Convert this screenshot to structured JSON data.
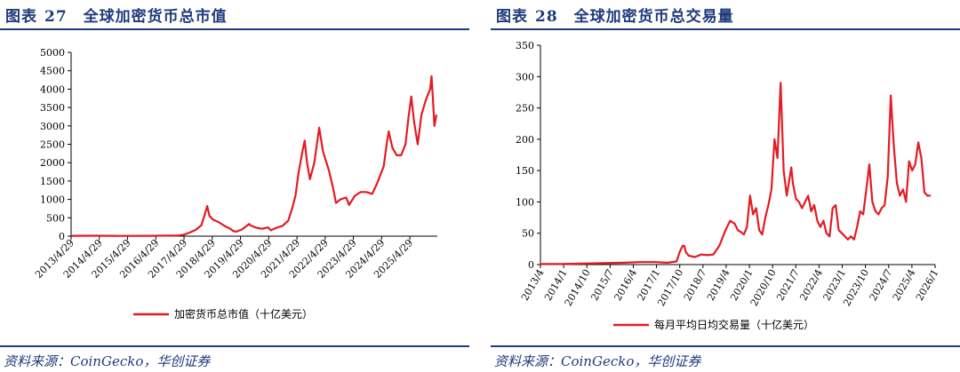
{
  "colors": {
    "series": "#e31b23",
    "heading": "#1f3b7a",
    "axis": "#000000"
  },
  "panels": [
    {
      "title_label": "图表",
      "title_num": "27",
      "title_text": "全球加密货币总市值",
      "source": "资料来源：CoinGecko，华创证券"
    },
    {
      "title_label": "图表",
      "title_num": "28",
      "title_text": "全球加密货币总交易量",
      "source": "资料来源：CoinGecko，华创证券"
    }
  ],
  "chart_data": [
    {
      "type": "line",
      "title": "",
      "xlabel": "",
      "ylabel": "",
      "ylim": [
        0,
        5000
      ],
      "yticks": [
        "0",
        "500",
        "1000",
        "1500",
        "2000",
        "2500",
        "3000",
        "3500",
        "4000",
        "4500",
        "5000"
      ],
      "xticks": [
        "2013/4/29",
        "2014/4/29",
        "2015/4/29",
        "2016/4/29",
        "2017/4/29",
        "2018/4/29",
        "2019/4/29",
        "2020/4/29",
        "2021/4/29",
        "2022/4/29",
        "2023/4/29",
        "2024/4/29",
        "2025/4/29"
      ],
      "x_range": [
        2013.3,
        2025.95
      ],
      "legend_position": "bottom",
      "grid": false,
      "series": [
        {
          "name": "加密货币总市值（十亿美元）",
          "x": [
            2013.33,
            2014.0,
            2015.0,
            2016.0,
            2017.0,
            2017.2,
            2017.4,
            2017.6,
            2017.8,
            2017.92,
            2018.0,
            2018.08,
            2018.2,
            2018.4,
            2018.6,
            2018.8,
            2018.9,
            2019.0,
            2019.2,
            2019.45,
            2019.5,
            2019.7,
            2019.9,
            2020.1,
            2020.2,
            2020.4,
            2020.6,
            2020.8,
            2020.95,
            2021.05,
            2021.15,
            2021.3,
            2021.37,
            2021.45,
            2021.55,
            2021.7,
            2021.87,
            2022.0,
            2022.2,
            2022.35,
            2022.45,
            2022.6,
            2022.8,
            2022.9,
            2023.1,
            2023.3,
            2023.5,
            2023.7,
            2023.85,
            2024.0,
            2024.1,
            2024.2,
            2024.27,
            2024.4,
            2024.55,
            2024.7,
            2024.85,
            2024.95,
            2025.05,
            2025.15,
            2025.27,
            2025.4,
            2025.55,
            2025.7,
            2025.75,
            2025.8,
            2025.85,
            2025.92
          ],
          "values": [
            10,
            12,
            8,
            9,
            20,
            40,
            100,
            170,
            300,
            600,
            820,
            550,
            450,
            380,
            280,
            200,
            140,
            120,
            180,
            330,
            290,
            230,
            200,
            240,
            160,
            230,
            280,
            420,
            800,
            1100,
            1700,
            2350,
            2600,
            2000,
            1550,
            2000,
            2950,
            2300,
            1800,
            1300,
            900,
            1000,
            1050,
            850,
            1100,
            1200,
            1200,
            1150,
            1400,
            1700,
            1900,
            2500,
            2850,
            2400,
            2200,
            2200,
            2500,
            3200,
            3800,
            3100,
            2500,
            3300,
            3700,
            4000,
            4350,
            3700,
            3000,
            3300
          ]
        }
      ]
    },
    {
      "type": "line",
      "title": "",
      "xlabel": "",
      "ylabel": "",
      "ylim": [
        0,
        350
      ],
      "yticks": [
        "0",
        "50",
        "100",
        "150",
        "200",
        "250",
        "300",
        "350"
      ],
      "xticks": [
        "2013/4",
        "2014/1",
        "2014/10",
        "2015/7",
        "2016/4",
        "2017/1",
        "2017/10",
        "2018/7",
        "2019/4",
        "2020/1",
        "2020/10",
        "2021/7",
        "2022/4",
        "2023/1",
        "2023/10",
        "2024/7",
        "2025/4",
        "2026/1"
      ],
      "x_range": [
        2013.25,
        2026.15
      ],
      "legend_position": "bottom",
      "grid": false,
      "series": [
        {
          "name": "每月平均日均交易量（十亿美元）",
          "x": [
            2013.25,
            2014.0,
            2015.0,
            2016.0,
            2016.5,
            2017.0,
            2017.4,
            2017.7,
            2017.8,
            2017.9,
            2017.95,
            2018.0,
            2018.1,
            2018.3,
            2018.5,
            2018.7,
            2018.9,
            2019.1,
            2019.3,
            2019.45,
            2019.6,
            2019.7,
            2019.8,
            2019.9,
            2020.0,
            2020.1,
            2020.2,
            2020.3,
            2020.4,
            2020.5,
            2020.6,
            2020.7,
            2020.8,
            2020.9,
            2021.0,
            2021.1,
            2021.2,
            2021.3,
            2021.4,
            2021.45,
            2021.5,
            2021.6,
            2021.7,
            2021.8,
            2021.9,
            2022.0,
            2022.1,
            2022.2,
            2022.3,
            2022.4,
            2022.5,
            2022.6,
            2022.7,
            2022.8,
            2022.9,
            2023.0,
            2023.1,
            2023.2,
            2023.3,
            2023.4,
            2023.5,
            2023.6,
            2023.7,
            2023.8,
            2023.9,
            2024.0,
            2024.1,
            2024.2,
            2024.3,
            2024.4,
            2024.5,
            2024.6,
            2024.7,
            2024.8,
            2024.9,
            2025.0,
            2025.1,
            2025.2,
            2025.3,
            2025.4,
            2025.5,
            2025.6,
            2025.7,
            2025.8,
            2025.9,
            2026.0
          ],
          "values": [
            1,
            1,
            2,
            3,
            4,
            4,
            3,
            5,
            20,
            30,
            30,
            20,
            14,
            12,
            16,
            15,
            16,
            30,
            55,
            70,
            65,
            55,
            52,
            48,
            60,
            110,
            80,
            90,
            55,
            48,
            75,
            95,
            120,
            200,
            170,
            290,
            150,
            110,
            140,
            155,
            130,
            105,
            100,
            90,
            100,
            110,
            85,
            95,
            70,
            60,
            70,
            50,
            45,
            90,
            95,
            55,
            50,
            45,
            40,
            45,
            40,
            60,
            85,
            80,
            120,
            160,
            100,
            85,
            80,
            90,
            95,
            140,
            270,
            190,
            130,
            110,
            120,
            100,
            165,
            150,
            160,
            195,
            170,
            115,
            110,
            110
          ]
        }
      ]
    }
  ]
}
